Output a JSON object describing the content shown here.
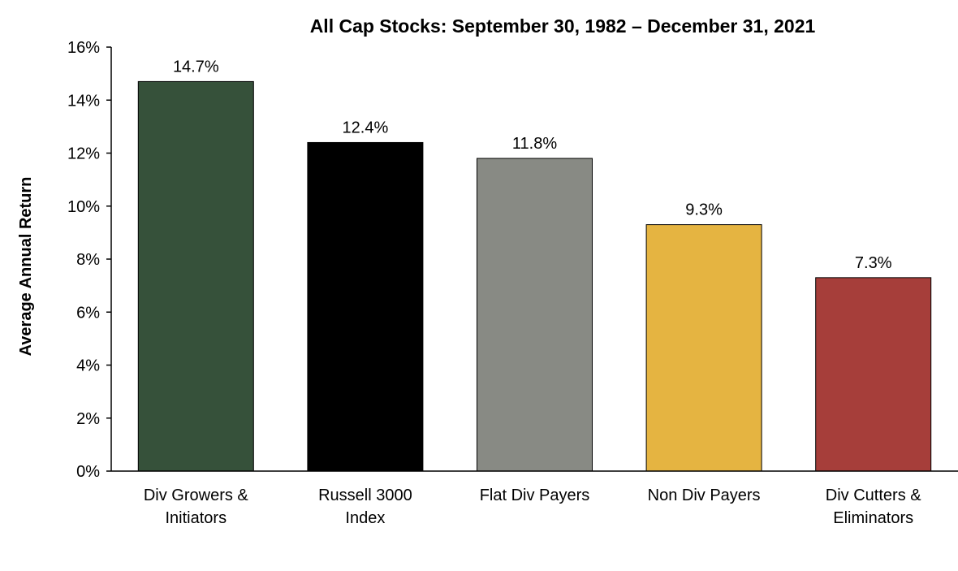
{
  "chart_data": {
    "type": "bar",
    "title": "All Cap Stocks:  September 30, 1982 – December 31, 2021",
    "xlabel": "",
    "ylabel": "Average Annual Return",
    "ylim": [
      0,
      16
    ],
    "y_ticks": [
      {
        "value": 0,
        "label": "0%"
      },
      {
        "value": 2,
        "label": "2%"
      },
      {
        "value": 4,
        "label": "4%"
      },
      {
        "value": 6,
        "label": "6%"
      },
      {
        "value": 8,
        "label": "8%"
      },
      {
        "value": 10,
        "label": "10%"
      },
      {
        "value": 12,
        "label": "12%"
      },
      {
        "value": 14,
        "label": "14%"
      },
      {
        "value": 16,
        "label": "16%"
      }
    ],
    "grid": false,
    "legend": "none",
    "bars": [
      {
        "category_lines": [
          "Div Growers &",
          "Initiators"
        ],
        "value": 14.7,
        "label": "14.7%",
        "color": "#36513A"
      },
      {
        "category_lines": [
          "Russell 3000",
          "Index"
        ],
        "value": 12.4,
        "label": "12.4%",
        "color": "#000000"
      },
      {
        "category_lines": [
          "Flat Div Payers"
        ],
        "value": 11.8,
        "label": "11.8%",
        "color": "#888A84"
      },
      {
        "category_lines": [
          "Non Div Payers"
        ],
        "value": 9.3,
        "label": "9.3%",
        "color": "#E5B441"
      },
      {
        "category_lines": [
          "Div Cutters &",
          "Eliminators"
        ],
        "value": 7.3,
        "label": "7.3%",
        "color": "#A63E3A"
      }
    ]
  }
}
